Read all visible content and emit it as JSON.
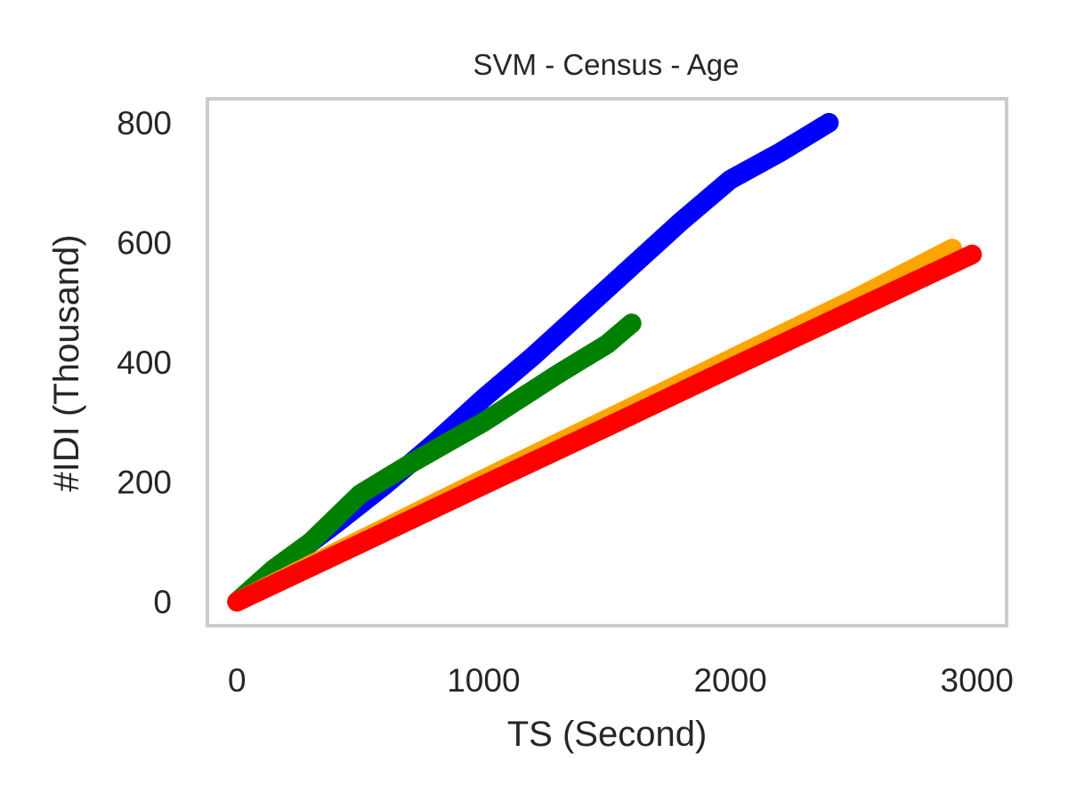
{
  "chart_data": {
    "type": "line",
    "title": "SVM - Census - Age",
    "xlabel": "TS (Second)",
    "ylabel": "#IDI (Thousand)",
    "xlim": [
      -120,
      3120
    ],
    "ylim": [
      -40,
      840
    ],
    "xticks": [
      0,
      1000,
      2000,
      3000
    ],
    "yticks": [
      0,
      200,
      400,
      600,
      800
    ],
    "grid": false,
    "legend": "none",
    "series": [
      {
        "color": "#0000ff",
        "x": [
          0,
          200,
          400,
          600,
          800,
          1000,
          1200,
          1400,
          1600,
          1800,
          2000,
          2200,
          2400
        ],
        "y": [
          0,
          68,
          130,
          195,
          265,
          340,
          410,
          485,
          560,
          635,
          705,
          750,
          800
        ]
      },
      {
        "color": "#008000",
        "x": [
          0,
          150,
          300,
          400,
          500,
          600,
          700,
          850,
          1000,
          1150,
          1300,
          1400,
          1500,
          1600
        ],
        "y": [
          0,
          55,
          100,
          140,
          180,
          205,
          230,
          265,
          300,
          340,
          380,
          405,
          430,
          465
        ]
      },
      {
        "color": "#ffa500",
        "x": [
          0,
          500,
          1000,
          1500,
          2000,
          2500,
          2900
        ],
        "y": [
          0,
          103,
          205,
          305,
          405,
          505,
          590
        ]
      },
      {
        "color": "#ff0000",
        "x": [
          0,
          500,
          1000,
          1500,
          2000,
          2500,
          2980
        ],
        "y": [
          0,
          97,
          195,
          292,
          390,
          487,
          580
        ]
      }
    ]
  }
}
